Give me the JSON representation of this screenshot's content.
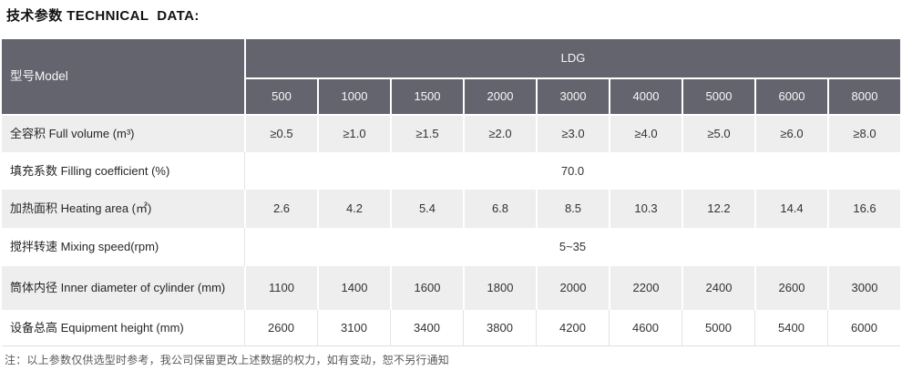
{
  "title": "技术参数 TECHNICAL  DATA:",
  "table": {
    "model_header": "型号Model",
    "series_header": "LDG",
    "columns": [
      "500",
      "1000",
      "1500",
      "2000",
      "3000",
      "4000",
      "5000",
      "6000",
      "8000"
    ],
    "rows": [
      {
        "label": "全容积 Full volume (m³)",
        "values": [
          "≥0.5",
          "≥1.0",
          "≥1.5",
          "≥2.0",
          "≥3.0",
          "≥4.0",
          "≥5.0",
          "≥6.0",
          "≥8.0"
        ]
      },
      {
        "label": "填充系数 Filling coefficient (%)",
        "span_value": "70.0"
      },
      {
        "label": "加热面积 Heating area (㎡)",
        "values": [
          "2.6",
          "4.2",
          "5.4",
          "6.8",
          "8.5",
          "10.3",
          "12.2",
          "14.4",
          "16.6"
        ]
      },
      {
        "label": "搅拌转速 Mixing speed(rpm)",
        "span_value": "5~35"
      },
      {
        "label": "筒体内径 Inner diameter of cylinder (mm)",
        "values": [
          "1100",
          "1400",
          "1600",
          "1800",
          "2000",
          "2200",
          "2400",
          "2600",
          "3000"
        ]
      },
      {
        "label": "设备总高 Equipment height (mm)",
        "values": [
          "2600",
          "3100",
          "3400",
          "3800",
          "4200",
          "4600",
          "5000",
          "5400",
          "6000"
        ]
      }
    ]
  },
  "footnote": "注：以上参数仅供选型时参考，我公司保留更改上述数据的权力，如有变动，恕不另行通知",
  "colors": {
    "header_bg": "#64646e",
    "header_text": "#f7f7fa",
    "row_alt_bg": "#eeeeef",
    "row_bg": "#ffffff",
    "divider_light": "#e3e3e6"
  }
}
